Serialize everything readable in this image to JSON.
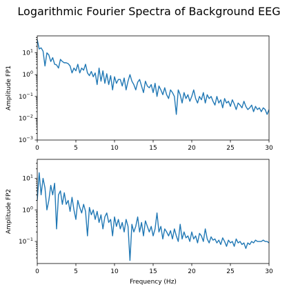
{
  "figure": {
    "title": "Logarithmic Fourier Spectra of Background EEG",
    "line_color": "#1f77b4"
  },
  "chart_data": [
    {
      "type": "line",
      "ylabel": "Amplitude FP1",
      "xlabel": "",
      "xlim": [
        0,
        30
      ],
      "ylim": [
        0.001,
        60
      ],
      "yscale": "log",
      "xticks": [
        0,
        5,
        10,
        15,
        20,
        25,
        30
      ],
      "yticks": [
        {
          "value": 0.001,
          "base": "10",
          "exp": "−3"
        },
        {
          "value": 0.01,
          "base": "10",
          "exp": "−2"
        },
        {
          "value": 0.1,
          "base": "10",
          "exp": "−1"
        },
        {
          "value": 1,
          "base": "10",
          "exp": "0"
        },
        {
          "value": 10,
          "base": "10",
          "exp": "1"
        }
      ],
      "grid": false,
      "series": [
        {
          "x": [
            0,
            0.25,
            0.5,
            0.75,
            1,
            1.25,
            1.5,
            1.75,
            2,
            2.25,
            2.5,
            2.75,
            3,
            3.25,
            3.5,
            3.75,
            4,
            4.25,
            4.5,
            4.75,
            5,
            5.25,
            5.5,
            5.75,
            6,
            6.25,
            6.5,
            6.75,
            7,
            7.25,
            7.5,
            7.75,
            8,
            8.25,
            8.5,
            8.75,
            9,
            9.25,
            9.5,
            9.75,
            10,
            10.25,
            10.5,
            10.75,
            11,
            11.25,
            11.5,
            11.75,
            12,
            12.25,
            12.5,
            12.75,
            13,
            13.25,
            13.5,
            13.75,
            14,
            14.25,
            14.5,
            14.75,
            15,
            15.25,
            15.5,
            15.75,
            16,
            16.25,
            16.5,
            16.75,
            17,
            17.25,
            17.5,
            17.75,
            18,
            18.25,
            18.5,
            18.75,
            19,
            19.25,
            19.5,
            19.75,
            20,
            20.25,
            20.5,
            20.75,
            21,
            21.25,
            21.5,
            21.75,
            22,
            22.25,
            22.5,
            22.75,
            23,
            23.25,
            23.5,
            23.75,
            24,
            24.25,
            24.5,
            24.75,
            25,
            25.25,
            25.5,
            25.75,
            26,
            26.25,
            26.5,
            26.75,
            27,
            27.25,
            27.5,
            27.75,
            28,
            28.25,
            28.5,
            28.75,
            29,
            29.25,
            29.5,
            29.75,
            30
          ],
          "y": [
            40,
            15,
            17,
            12,
            2.5,
            10,
            8,
            4,
            6,
            3,
            2.8,
            2,
            5,
            4,
            3.5,
            3.5,
            3.2,
            2.5,
            1.2,
            2,
            1.5,
            3,
            1.2,
            2,
            1.6,
            3,
            1.2,
            0.9,
            1.4,
            0.8,
            1.2,
            0.35,
            2,
            0.5,
            1.5,
            0.4,
            1.1,
            0.35,
            0.9,
            0.2,
            0.8,
            0.4,
            0.6,
            0.6,
            0.3,
            0.7,
            0.2,
            0.5,
            1,
            0.5,
            0.35,
            0.2,
            0.45,
            0.6,
            0.3,
            0.15,
            0.5,
            0.3,
            0.25,
            0.35,
            0.15,
            0.4,
            0.1,
            0.3,
            0.2,
            0.12,
            0.25,
            0.12,
            0.08,
            0.2,
            0.15,
            0.1,
            0.015,
            0.2,
            0.12,
            0.05,
            0.15,
            0.08,
            0.12,
            0.06,
            0.1,
            0.2,
            0.08,
            0.05,
            0.1,
            0.07,
            0.15,
            0.05,
            0.12,
            0.08,
            0.1,
            0.06,
            0.04,
            0.1,
            0.05,
            0.07,
            0.03,
            0.08,
            0.05,
            0.06,
            0.035,
            0.07,
            0.045,
            0.025,
            0.05,
            0.04,
            0.03,
            0.06,
            0.035,
            0.025,
            0.03,
            0.04,
            0.02,
            0.035,
            0.025,
            0.03,
            0.02,
            0.03,
            0.025,
            0.015,
            0.025
          ]
        }
      ]
    },
    {
      "type": "line",
      "ylabel": "Amplitude FP2",
      "xlabel": "Frequency (Hz)",
      "xlim": [
        0,
        30
      ],
      "ylim": [
        0.02,
        40
      ],
      "yscale": "log",
      "xticks": [
        0,
        5,
        10,
        15,
        20,
        25,
        30
      ],
      "yticks": [
        {
          "value": 0.1,
          "base": "10",
          "exp": "−1"
        },
        {
          "value": 1,
          "base": "10",
          "exp": "0"
        },
        {
          "value": 10,
          "base": "10",
          "exp": "1"
        }
      ],
      "grid": false,
      "series": [
        {
          "x": [
            0,
            0.25,
            0.5,
            0.75,
            1,
            1.25,
            1.5,
            1.75,
            2,
            2.25,
            2.5,
            2.75,
            3,
            3.25,
            3.5,
            3.75,
            4,
            4.25,
            4.5,
            4.75,
            5,
            5.25,
            5.5,
            5.75,
            6,
            6.25,
            6.5,
            6.75,
            7,
            7.25,
            7.5,
            7.75,
            8,
            8.25,
            8.5,
            8.75,
            9,
            9.25,
            9.5,
            9.75,
            10,
            10.25,
            10.5,
            10.75,
            11,
            11.25,
            11.5,
            11.75,
            12,
            12.25,
            12.5,
            12.75,
            13,
            13.25,
            13.5,
            13.75,
            14,
            14.25,
            14.5,
            14.75,
            15,
            15.25,
            15.5,
            15.75,
            16,
            16.25,
            16.5,
            16.75,
            17,
            17.25,
            17.5,
            17.75,
            18,
            18.25,
            18.5,
            18.75,
            19,
            19.25,
            19.5,
            19.75,
            20,
            20.25,
            20.5,
            20.75,
            21,
            21.25,
            21.5,
            21.75,
            22,
            22.25,
            22.5,
            22.75,
            23,
            23.25,
            23.5,
            23.75,
            24,
            24.25,
            24.5,
            24.75,
            25,
            25.25,
            25.5,
            25.75,
            26,
            26.25,
            26.5,
            26.75,
            27,
            27.25,
            27.5,
            27.75,
            28,
            28.25,
            28.5,
            28.75,
            29,
            29.25,
            29.5,
            29.75,
            30
          ],
          "y": [
            2,
            15,
            3,
            10,
            5,
            1,
            2,
            6,
            3,
            7,
            0.25,
            3,
            4,
            1.5,
            3.5,
            1.5,
            2,
            0.9,
            2.5,
            1,
            0.5,
            2,
            1.2,
            0.8,
            1.5,
            0.9,
            0.15,
            1.2,
            0.7,
            1,
            0.5,
            0.9,
            0.4,
            0.7,
            0.25,
            0.6,
            0.8,
            0.4,
            0.5,
            0.15,
            0.6,
            0.3,
            0.5,
            0.25,
            0.4,
            0.2,
            0.5,
            0.3,
            0.025,
            0.35,
            0.2,
            0.3,
            0.6,
            0.2,
            0.4,
            0.15,
            0.45,
            0.3,
            0.2,
            0.3,
            0.15,
            0.25,
            0.8,
            0.2,
            0.3,
            0.12,
            0.25,
            0.2,
            0.15,
            0.22,
            0.12,
            0.25,
            0.15,
            0.1,
            0.35,
            0.12,
            0.2,
            0.13,
            0.15,
            0.1,
            0.2,
            0.12,
            0.15,
            0.09,
            0.18,
            0.15,
            0.1,
            0.25,
            0.12,
            0.09,
            0.14,
            0.11,
            0.12,
            0.09,
            0.11,
            0.08,
            0.13,
            0.1,
            0.07,
            0.11,
            0.09,
            0.1,
            0.07,
            0.12,
            0.09,
            0.1,
            0.08,
            0.09,
            0.06,
            0.09,
            0.08,
            0.1,
            0.09,
            0.11,
            0.1,
            0.1,
            0.1,
            0.11,
            0.1,
            0.1,
            0.09
          ]
        }
      ]
    }
  ]
}
